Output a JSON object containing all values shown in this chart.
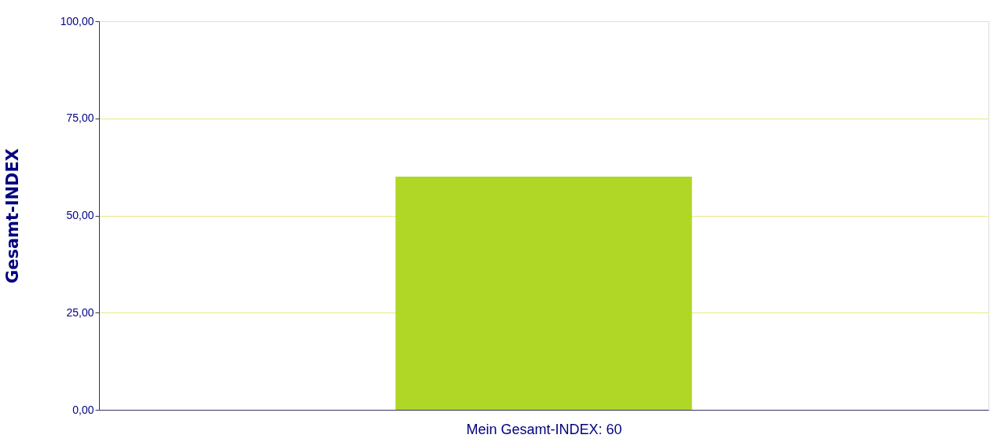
{
  "chart_data": {
    "type": "bar",
    "xlabel": "Mein Gesamt-INDEX:  60",
    "ylabel": "Gesamt-INDEX",
    "categories": [
      null
    ],
    "values": [
      60
    ],
    "color": "#b0d725",
    "ylim": [
      0,
      100
    ],
    "yticks": [
      {
        "value": 0,
        "label": "0,00"
      },
      {
        "value": 25,
        "label": "25,00"
      },
      {
        "value": 50,
        "label": "50,00"
      },
      {
        "value": 75,
        "label": "75,00"
      },
      {
        "value": 100,
        "label": "100,00"
      }
    ],
    "grid": "y"
  }
}
